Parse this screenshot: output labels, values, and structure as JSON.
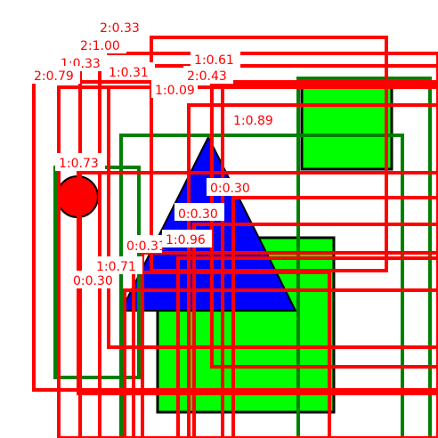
{
  "canvas": {
    "background": "#ffffff"
  },
  "colors": {
    "box_red": "#ff0000",
    "box_green": "#008000",
    "shape_green": "#00ff00",
    "shape_blue": "#0000ff",
    "shape_red": "#ff0000",
    "outline": "#000000",
    "label_text": "#ff0000",
    "label_bg": "#ffffff"
  },
  "shapes": [
    {
      "kind": "rectangle",
      "color": "green",
      "fill": "#00ff00"
    },
    {
      "kind": "rectangle",
      "color": "green",
      "fill": "#00ff00"
    },
    {
      "kind": "triangle",
      "color": "blue",
      "fill": "#0000ff"
    },
    {
      "kind": "circle",
      "color": "red",
      "fill": "#ff0000"
    }
  ],
  "labels": [
    "2:0.33",
    "2:1.00",
    "1:0.33",
    "1:0.61",
    "2:0.79",
    "1:0.31",
    "2:0.43",
    "1:0.09",
    "1:0.89",
    "1:0.73",
    "0:0.30",
    "0:0.30",
    "0:0.31",
    "1:0.96",
    "1:0.71",
    "0:0.30"
  ]
}
